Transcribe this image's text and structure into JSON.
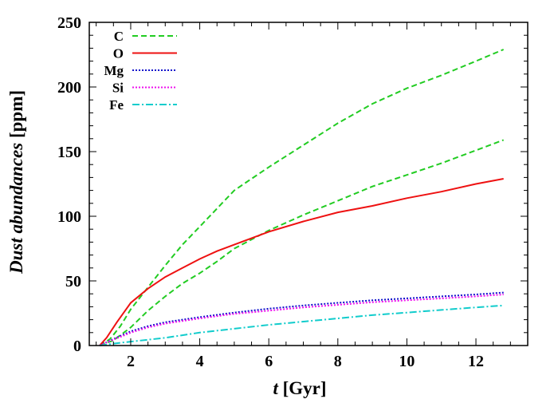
{
  "chart_data": {
    "type": "line",
    "xlabel_italic": "t",
    "xlabel_rest": " [Gyr]",
    "ylabel_italic": "Dust abundances",
    "ylabel_rest": " [ppm]",
    "xlim": [
      0.8,
      13.5
    ],
    "ylim": [
      0,
      250
    ],
    "x_ticks": [
      2,
      4,
      6,
      8,
      10,
      12
    ],
    "y_ticks": [
      0,
      50,
      100,
      150,
      200,
      250
    ],
    "legend_position": "top-left",
    "series": [
      {
        "name": "C",
        "color": "#22cc22",
        "style": "dashed",
        "x": [
          1.1,
          1.4,
          1.7,
          2.0,
          2.5,
          3.0,
          3.5,
          4.0,
          5.0,
          6.0,
          7.0,
          8.0,
          9.0,
          10.0,
          11.0,
          12.0,
          12.8
        ],
        "y": [
          0,
          5,
          15,
          28,
          45,
          62,
          78,
          92,
          120,
          138,
          155,
          172,
          187,
          199,
          209,
          220,
          229
        ]
      },
      {
        "name": "",
        "color": "#22cc22",
        "style": "dashed",
        "x": [
          1.1,
          1.5,
          2.0,
          2.5,
          3.0,
          3.5,
          4.0,
          4.5,
          5.0,
          6.0,
          7.0,
          8.0,
          9.0,
          10.0,
          11.0,
          12.0,
          12.8
        ],
        "y": [
          0,
          4,
          14,
          27,
          38,
          48,
          56,
          65,
          75,
          89,
          101,
          112,
          123,
          132,
          141,
          151,
          159
        ]
      },
      {
        "name": "O",
        "color": "#ee1111",
        "style": "solid",
        "x": [
          1.1,
          1.3,
          1.6,
          2.0,
          2.5,
          3.0,
          3.5,
          4.0,
          4.5,
          5.0,
          6.0,
          7.0,
          8.0,
          9.0,
          10.0,
          11.0,
          12.0,
          12.8
        ],
        "y": [
          0,
          6,
          18,
          33,
          44,
          53,
          60,
          67,
          73,
          78,
          88,
          96,
          103,
          108,
          114,
          119,
          125,
          129
        ]
      },
      {
        "name": "Mg",
        "color": "#1111cc",
        "style": "dotted",
        "x": [
          1.1,
          1.5,
          2.0,
          2.5,
          3.0,
          4.0,
          5.0,
          6.0,
          7.0,
          8.0,
          9.0,
          10.0,
          11.0,
          12.0,
          12.8
        ],
        "y": [
          0,
          5,
          11,
          15,
          18,
          22,
          25.5,
          28.5,
          31,
          33,
          35,
          36.5,
          38,
          39.5,
          41
        ]
      },
      {
        "name": "Si",
        "color": "#ee11ee",
        "style": "dotted",
        "x": [
          1.1,
          1.5,
          2.0,
          2.5,
          3.0,
          4.0,
          5.0,
          6.0,
          7.0,
          8.0,
          9.0,
          10.0,
          11.0,
          12.0,
          12.8
        ],
        "y": [
          0,
          4.5,
          10,
          14,
          17,
          21,
          24.5,
          27,
          29.5,
          31.5,
          33.5,
          35,
          36.5,
          38,
          39.5
        ]
      },
      {
        "name": "Fe",
        "color": "#11cccc",
        "style": "dashdot",
        "x": [
          1.1,
          1.5,
          2.0,
          3.0,
          4.0,
          5.0,
          6.0,
          7.0,
          8.0,
          9.0,
          10.0,
          11.0,
          12.0,
          12.8
        ],
        "y": [
          0,
          1.5,
          3,
          6,
          10,
          13,
          16,
          18.5,
          21,
          23.5,
          25.5,
          27.5,
          29.5,
          31
        ]
      }
    ]
  }
}
